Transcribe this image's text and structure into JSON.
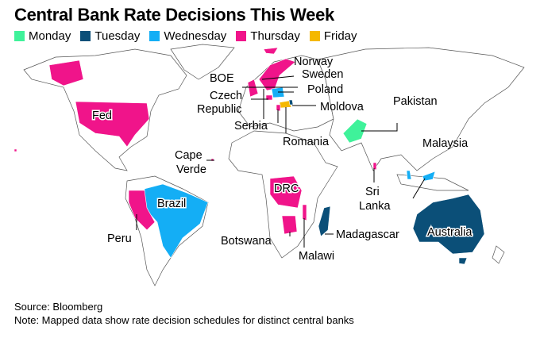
{
  "title": "Central Bank Rate Decisions This Week",
  "legend": [
    {
      "label": "Monday",
      "color": "#3ff29a"
    },
    {
      "label": "Tuesday",
      "color": "#0b4f78"
    },
    {
      "label": "Wednesday",
      "color": "#14aef5"
    },
    {
      "label": "Thursday",
      "color": "#f0148a"
    },
    {
      "label": "Friday",
      "color": "#f5b800"
    }
  ],
  "regions": [
    {
      "label": "Fed",
      "day": "Thursday"
    },
    {
      "label": "BOE",
      "day": "Thursday"
    },
    {
      "label": "Norway",
      "day": "Thursday"
    },
    {
      "label": "Sweden",
      "day": "Thursday"
    },
    {
      "label": "Poland",
      "day": "Wednesday"
    },
    {
      "label": "Czech",
      "label2": "Republic",
      "day": "Thursday"
    },
    {
      "label": "Moldova",
      "day": "Tuesday"
    },
    {
      "label": "Serbia",
      "day": "Thursday"
    },
    {
      "label": "Romania",
      "day": "Friday"
    },
    {
      "label": "Pakistan",
      "day": "Monday"
    },
    {
      "label": "Malaysia",
      "day": "Wednesday"
    },
    {
      "label": "Cape",
      "label2": "Verde",
      "day": "Thursday"
    },
    {
      "label": "Sri",
      "label2": "Lanka",
      "day": "Thursday"
    },
    {
      "label": "DRC",
      "day": "Thursday"
    },
    {
      "label": "Brazil",
      "day": "Wednesday"
    },
    {
      "label": "Peru",
      "day": "Thursday"
    },
    {
      "label": "Botswana",
      "day": "Thursday"
    },
    {
      "label": "Malawi",
      "day": "Thursday"
    },
    {
      "label": "Madagascar",
      "day": "Tuesday"
    },
    {
      "label": "Australia",
      "day": "Tuesday"
    }
  ],
  "footer": {
    "source": "Source: Bloomberg",
    "note": "Note: Mapped data show rate decision schedules for distinct central banks"
  }
}
